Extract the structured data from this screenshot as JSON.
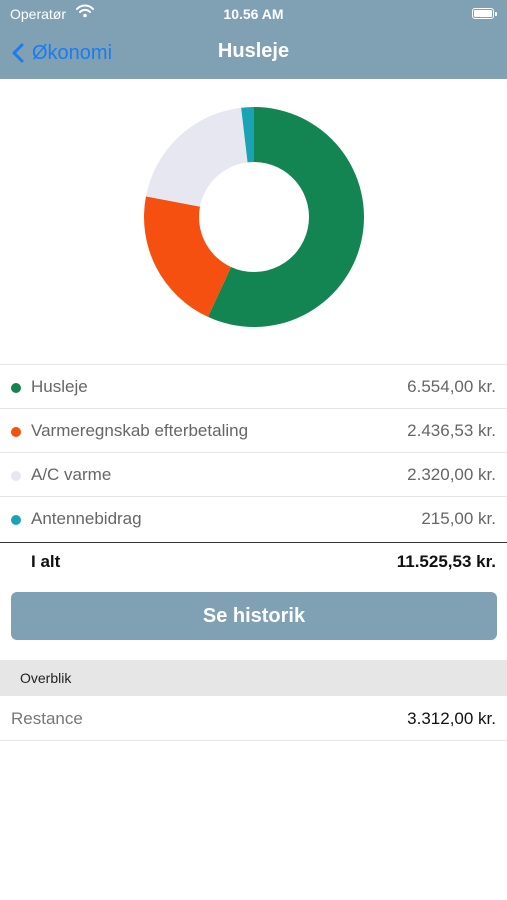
{
  "status_bar": {
    "carrier": "Operatør",
    "time": "10.56 AM"
  },
  "nav": {
    "back_label": "Økonomi",
    "title": "Husleje"
  },
  "chart_data": {
    "type": "pie",
    "variant": "donut",
    "slices": [
      {
        "label": "Husleje",
        "value": 6554.0,
        "display": "6.554,00 kr.",
        "color": "#138552"
      },
      {
        "label": "Varmeregnskab efterbetaling",
        "value": 2436.53,
        "display": "2.436,53 kr.",
        "color": "#f5500f"
      },
      {
        "label": "A/C varme",
        "value": 2320.0,
        "display": "2.320,00 kr.",
        "color": "#e6e7f0"
      },
      {
        "label": "Antennebidrag",
        "value": 215.0,
        "display": "215,00 kr.",
        "color": "#1aa3b4"
      }
    ],
    "legend_position": "below"
  },
  "total": {
    "label": "I alt",
    "value": "11.525,53 kr."
  },
  "history_button": "Se historik",
  "overview": {
    "header": "Overblik",
    "rows": [
      {
        "label": "Restance",
        "value": "3.312,00 kr."
      }
    ]
  },
  "colors": {
    "header": "#7fa1b3",
    "back_link": "#1a7cf0"
  }
}
